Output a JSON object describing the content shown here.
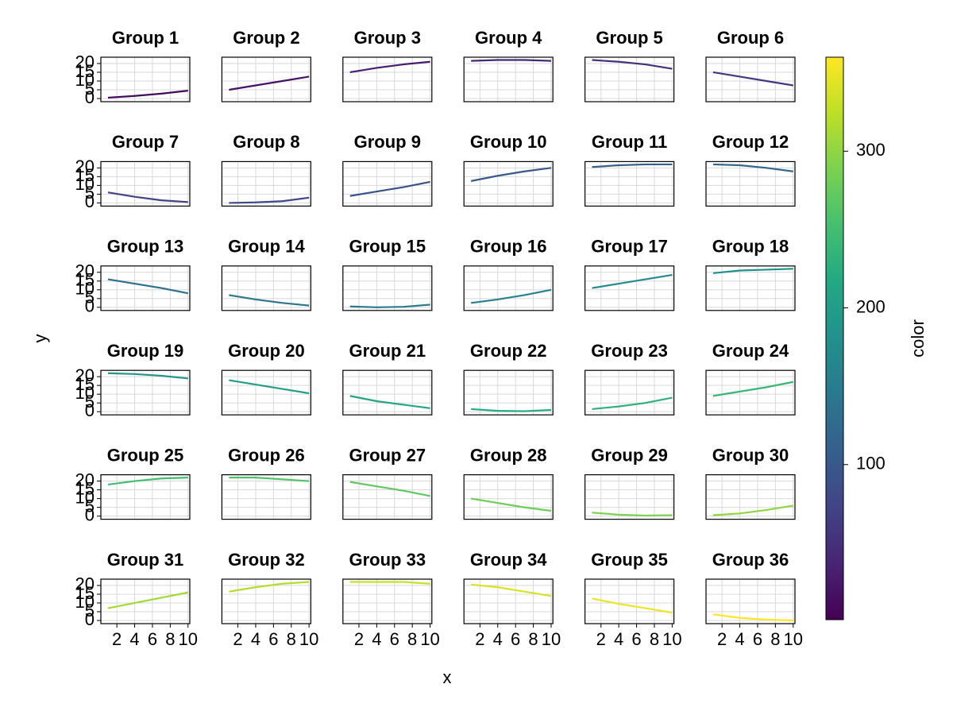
{
  "chart_data": {
    "type": "line",
    "x_label": "x",
    "y_label": "y",
    "x": [
      1,
      4,
      7,
      10
    ],
    "xlim": [
      0.2,
      10.2
    ],
    "xticks": [
      2,
      4,
      6,
      8,
      10
    ],
    "ylim": [
      -1.8,
      23.6
    ],
    "yticks": [
      0,
      5,
      10,
      15,
      20
    ],
    "grid": true,
    "series": [
      {
        "name": "Group 1",
        "color_value": 10,
        "values": [
          0.5,
          1.5,
          2.8,
          4.5
        ]
      },
      {
        "name": "Group 2",
        "color_value": 20,
        "values": [
          5,
          7.5,
          10,
          12.5
        ]
      },
      {
        "name": "Group 3",
        "color_value": 30,
        "values": [
          15,
          17.5,
          19.5,
          21
        ]
      },
      {
        "name": "Group 4",
        "color_value": 40,
        "values": [
          21.5,
          22,
          22,
          21.5
        ]
      },
      {
        "name": "Group 5",
        "color_value": 50,
        "values": [
          22,
          21,
          19.5,
          17
        ]
      },
      {
        "name": "Group 6",
        "color_value": 60,
        "values": [
          15,
          12.5,
          10,
          7.5
        ]
      },
      {
        "name": "Group 7",
        "color_value": 70,
        "values": [
          6,
          3.5,
          1.5,
          0.5
        ]
      },
      {
        "name": "Group 8",
        "color_value": 80,
        "values": [
          0,
          0.3,
          1,
          3
        ]
      },
      {
        "name": "Group 9",
        "color_value": 90,
        "values": [
          4,
          6.5,
          9,
          12
        ]
      },
      {
        "name": "Group 10",
        "color_value": 100,
        "values": [
          12.5,
          15.5,
          18,
          20
        ]
      },
      {
        "name": "Group 11",
        "color_value": 110,
        "values": [
          20.5,
          21.5,
          22,
          22
        ]
      },
      {
        "name": "Group 12",
        "color_value": 120,
        "values": [
          22,
          21.5,
          20,
          18
        ]
      },
      {
        "name": "Group 13",
        "color_value": 130,
        "values": [
          16,
          13.5,
          11,
          8
        ]
      },
      {
        "name": "Group 14",
        "color_value": 140,
        "values": [
          7,
          4.5,
          2.5,
          1
        ]
      },
      {
        "name": "Group 15",
        "color_value": 150,
        "values": [
          0.5,
          0,
          0.3,
          1.5
        ]
      },
      {
        "name": "Group 16",
        "color_value": 160,
        "values": [
          2.5,
          4.5,
          7,
          10
        ]
      },
      {
        "name": "Group 17",
        "color_value": 170,
        "values": [
          11,
          13.5,
          16,
          18.5
        ]
      },
      {
        "name": "Group 18",
        "color_value": 180,
        "values": [
          19.5,
          21,
          21.5,
          22
        ]
      },
      {
        "name": "Group 19",
        "color_value": 190,
        "values": [
          22,
          21.5,
          20.5,
          19
        ]
      },
      {
        "name": "Group 20",
        "color_value": 200,
        "values": [
          18,
          15.5,
          13,
          10.5
        ]
      },
      {
        "name": "Group 21",
        "color_value": 210,
        "values": [
          9,
          6,
          4,
          2
        ]
      },
      {
        "name": "Group 22",
        "color_value": 220,
        "values": [
          1.5,
          0.5,
          0.3,
          1
        ]
      },
      {
        "name": "Group 23",
        "color_value": 230,
        "values": [
          1.5,
          3,
          5,
          8
        ]
      },
      {
        "name": "Group 24",
        "color_value": 240,
        "values": [
          9,
          11.5,
          14,
          17
        ]
      },
      {
        "name": "Group 25",
        "color_value": 250,
        "values": [
          18,
          20,
          21.5,
          22
        ]
      },
      {
        "name": "Group 26",
        "color_value": 260,
        "values": [
          22,
          22,
          21,
          20
        ]
      },
      {
        "name": "Group 27",
        "color_value": 270,
        "values": [
          19.5,
          17,
          14.5,
          11.5
        ]
      },
      {
        "name": "Group 28",
        "color_value": 280,
        "values": [
          10,
          7.5,
          5,
          3
        ]
      },
      {
        "name": "Group 29",
        "color_value": 290,
        "values": [
          2,
          0.8,
          0.3,
          0.5
        ]
      },
      {
        "name": "Group 30",
        "color_value": 300,
        "values": [
          0.5,
          1.5,
          3.5,
          6
        ]
      },
      {
        "name": "Group 31",
        "color_value": 310,
        "values": [
          7,
          10,
          13,
          16
        ]
      },
      {
        "name": "Group 32",
        "color_value": 320,
        "values": [
          16.5,
          19,
          21,
          22
        ]
      },
      {
        "name": "Group 33",
        "color_value": 330,
        "values": [
          22,
          22,
          22,
          21
        ]
      },
      {
        "name": "Group 34",
        "color_value": 340,
        "values": [
          20.5,
          19,
          16.5,
          14
        ]
      },
      {
        "name": "Group 35",
        "color_value": 350,
        "values": [
          12.5,
          9.5,
          7,
          4.5
        ]
      },
      {
        "name": "Group 36",
        "color_value": 360,
        "values": [
          3.5,
          1.5,
          0.5,
          0
        ]
      }
    ],
    "colorbar": {
      "label": "color",
      "lim": [
        1,
        360
      ],
      "ticks": [
        100,
        200,
        300
      ],
      "colormap": [
        "#440154",
        "#482475",
        "#414487",
        "#355f8d",
        "#2a788e",
        "#21918c",
        "#22a884",
        "#44bf70",
        "#7ad151",
        "#bddf26",
        "#fde725"
      ]
    }
  }
}
